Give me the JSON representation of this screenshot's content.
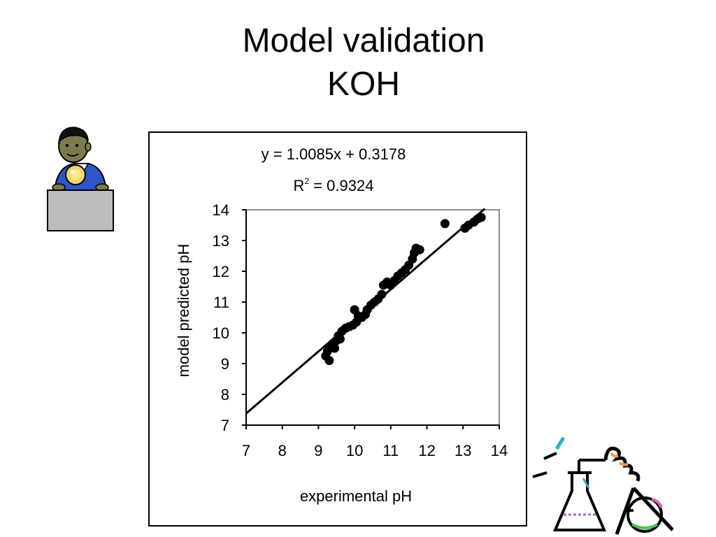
{
  "slide": {
    "title_line1": "Model validation",
    "title_line2": "KOH"
  },
  "clipart": {
    "left_icon": "fortune-teller-icon",
    "right_icon": "chemistry-flask-icon"
  },
  "chart_data": {
    "type": "scatter",
    "title": "",
    "xlabel": "experimental pH",
    "ylabel": "model predicted pH",
    "xlim": [
      7,
      14
    ],
    "ylim": [
      7,
      14
    ],
    "xticks": [
      "7",
      "8",
      "9",
      "10",
      "11",
      "12",
      "13",
      "14"
    ],
    "yticks": [
      "7",
      "8",
      "9",
      "10",
      "11",
      "12",
      "13",
      "14"
    ],
    "grid": false,
    "annotations": {
      "equation": "y = 1.0085x + 0.3178",
      "r2_label": "R",
      "r2_sup": "2",
      "r2_value": " = 0.9324"
    },
    "trendline": {
      "slope": 1.0085,
      "intercept": 0.3178,
      "x_range": [
        7,
        13.6
      ]
    },
    "points": [
      {
        "x": 9.2,
        "y": 9.25
      },
      {
        "x": 9.25,
        "y": 9.4
      },
      {
        "x": 9.3,
        "y": 9.1
      },
      {
        "x": 9.3,
        "y": 9.55
      },
      {
        "x": 9.4,
        "y": 9.65
      },
      {
        "x": 9.45,
        "y": 9.5
      },
      {
        "x": 9.5,
        "y": 9.75
      },
      {
        "x": 9.55,
        "y": 9.9
      },
      {
        "x": 9.6,
        "y": 9.8
      },
      {
        "x": 9.65,
        "y": 10.05
      },
      {
        "x": 9.75,
        "y": 10.15
      },
      {
        "x": 9.85,
        "y": 10.2
      },
      {
        "x": 9.95,
        "y": 10.25
      },
      {
        "x": 10.0,
        "y": 10.75
      },
      {
        "x": 10.05,
        "y": 10.35
      },
      {
        "x": 10.1,
        "y": 10.55
      },
      {
        "x": 10.2,
        "y": 10.5
      },
      {
        "x": 10.3,
        "y": 10.6
      },
      {
        "x": 10.35,
        "y": 10.75
      },
      {
        "x": 10.45,
        "y": 10.9
      },
      {
        "x": 10.55,
        "y": 11.0
      },
      {
        "x": 10.65,
        "y": 11.1
      },
      {
        "x": 10.75,
        "y": 11.25
      },
      {
        "x": 10.8,
        "y": 11.55
      },
      {
        "x": 10.9,
        "y": 11.65
      },
      {
        "x": 11.0,
        "y": 11.55
      },
      {
        "x": 11.1,
        "y": 11.7
      },
      {
        "x": 11.2,
        "y": 11.85
      },
      {
        "x": 11.3,
        "y": 11.95
      },
      {
        "x": 11.4,
        "y": 12.05
      },
      {
        "x": 11.5,
        "y": 12.2
      },
      {
        "x": 11.6,
        "y": 12.4
      },
      {
        "x": 11.65,
        "y": 12.6
      },
      {
        "x": 11.7,
        "y": 12.75
      },
      {
        "x": 11.8,
        "y": 12.7
      },
      {
        "x": 12.5,
        "y": 13.55
      },
      {
        "x": 13.05,
        "y": 13.4
      },
      {
        "x": 13.15,
        "y": 13.5
      },
      {
        "x": 13.3,
        "y": 13.6
      },
      {
        "x": 13.4,
        "y": 13.7
      },
      {
        "x": 13.5,
        "y": 13.75
      }
    ]
  }
}
